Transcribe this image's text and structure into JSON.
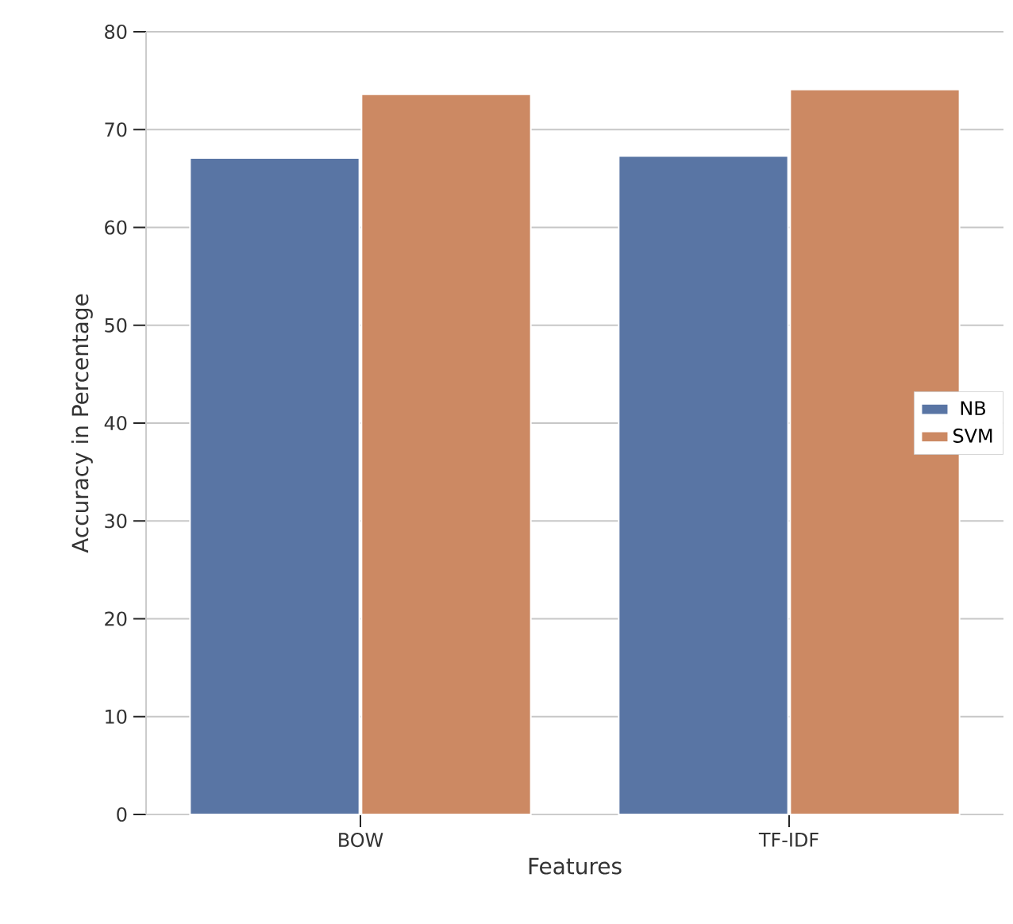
{
  "chart_data": {
    "type": "bar",
    "xlabel": "Features",
    "ylabel": "Accuracy in Percentage",
    "categories": [
      "BOW",
      "TF-IDF"
    ],
    "series": [
      {
        "name": "NB",
        "color": "#5975a4",
        "values": [
          67.1,
          67.3
        ]
      },
      {
        "name": "SVM",
        "color": "#cc8963",
        "values": [
          73.6,
          74.1
        ]
      }
    ],
    "ylim": [
      0,
      80
    ],
    "yticks": [
      0,
      10,
      20,
      30,
      40,
      50,
      60,
      70,
      80
    ],
    "grid": "y",
    "legend": "right"
  }
}
